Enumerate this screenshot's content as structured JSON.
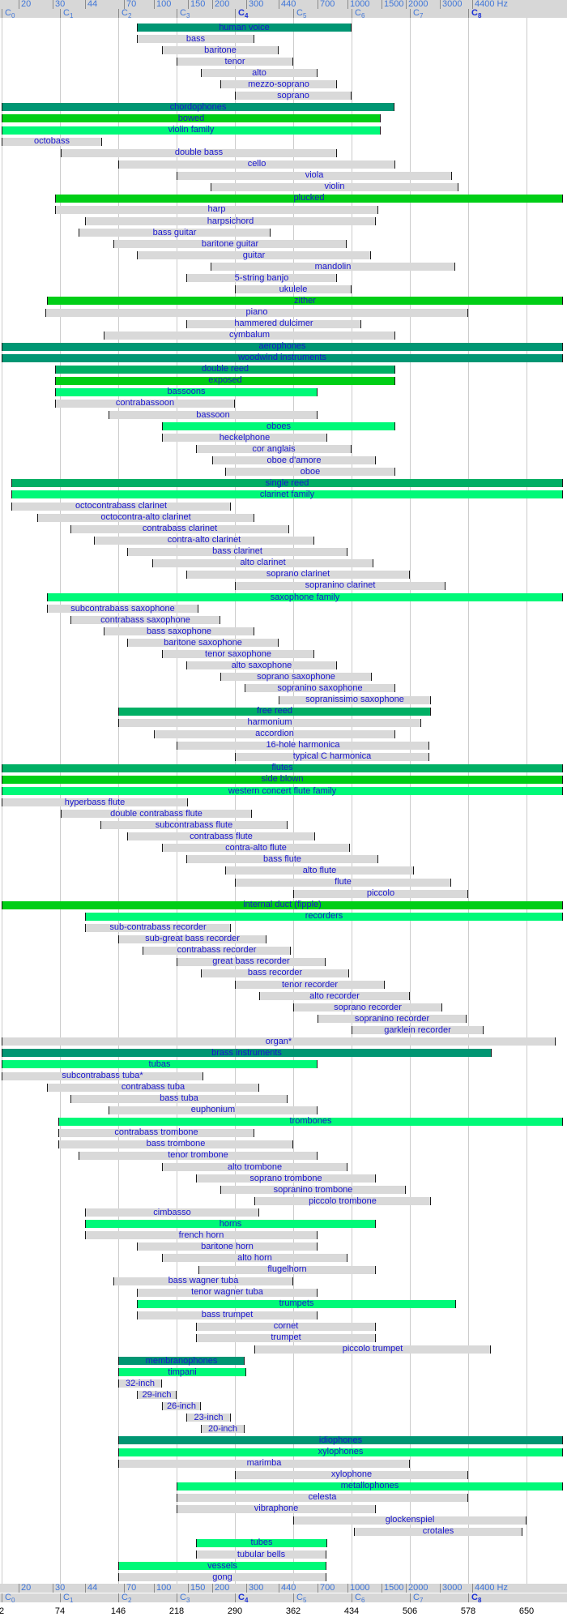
{
  "axis": {
    "top_frequency_row": {
      "values": [
        20,
        30,
        44,
        70,
        100,
        150,
        200,
        300,
        440,
        700,
        1000,
        1500,
        2000,
        3000,
        4400
      ],
      "unit": "Hz"
    },
    "octave_labels": [
      "C0",
      "C1",
      "C2",
      "C3",
      "C4",
      "C5",
      "C6",
      "C7",
      "C8"
    ],
    "bold_octave_labels": [
      "C4",
      "C8"
    ],
    "bottom_frequency_row": {
      "values": [
        20,
        30,
        44,
        70,
        100,
        150,
        200,
        300,
        440,
        700,
        1000,
        1500,
        2000,
        3000,
        4400
      ],
      "unit": "Hz"
    },
    "pixel_ruler_values": [
      2,
      74,
      146,
      218,
      290,
      362,
      434,
      506,
      578,
      650
    ]
  },
  "colors": {
    "branch": "#009673",
    "sub_branch": "#00af64",
    "method": "#00ce16",
    "family": "#00f978",
    "instrument": "#d9d9d9",
    "bar_label_text": "#1a16cf",
    "axis_text": "#4076d8",
    "axis_text_strong": "#1b2fd6",
    "grid_line": "#cccccc",
    "end_tick": "#1a1a1a",
    "scale_background": "#d7d7d7",
    "ruler_text": "#000000"
  },
  "chart_data": {
    "type": "bar",
    "subtype": "horizontal-range-bars",
    "title": "",
    "xlabel": "frequency (Hz), logarithmic scale",
    "ylabel": "",
    "x_scale": "log2",
    "x_range_hz": [
      16.35,
      13000
    ],
    "grid": true,
    "legend_levels": [
      "branch",
      "sub_branch",
      "method",
      "family",
      "instrument"
    ],
    "bars": [
      {
        "label": "human voice",
        "level": "branch",
        "low_hz": 82,
        "high_hz": 1047
      },
      {
        "label": "bass",
        "level": "instrument",
        "low_hz": 82,
        "high_hz": 330
      },
      {
        "label": "baritone",
        "level": "instrument",
        "low_hz": 110,
        "high_hz": 440
      },
      {
        "label": "tenor",
        "level": "instrument",
        "low_hz": 131,
        "high_hz": 523
      },
      {
        "label": "alto",
        "level": "instrument",
        "low_hz": 175,
        "high_hz": 698
      },
      {
        "label": "mezzo-soprano",
        "level": "instrument",
        "low_hz": 220,
        "high_hz": 880
      },
      {
        "label": "soprano",
        "level": "instrument",
        "low_hz": 262,
        "high_hz": 1047
      },
      {
        "label": "chordophones",
        "level": "branch",
        "low_hz": 16.35,
        "high_hz": 1740
      },
      {
        "label": "bowed",
        "level": "method",
        "low_hz": 16.35,
        "high_hz": 1480
      },
      {
        "label": "violin family",
        "level": "family",
        "low_hz": 16.35,
        "high_hz": 1480
      },
      {
        "label": "octobass",
        "level": "instrument",
        "low_hz": 16.35,
        "high_hz": 54
      },
      {
        "label": "double bass",
        "level": "instrument",
        "low_hz": 33,
        "high_hz": 880
      },
      {
        "label": "cello",
        "level": "instrument",
        "low_hz": 65.4,
        "high_hz": 1760
      },
      {
        "label": "viola",
        "level": "instrument",
        "low_hz": 131,
        "high_hz": 3460
      },
      {
        "label": "violin",
        "level": "instrument",
        "low_hz": 196,
        "high_hz": 3730
      },
      {
        "label": "plucked",
        "level": "method",
        "low_hz": 31,
        "high_hz": 12900
      },
      {
        "label": "harp",
        "level": "instrument",
        "low_hz": 31,
        "high_hz": 1440
      },
      {
        "label": "harpsichord",
        "level": "instrument",
        "low_hz": 44,
        "high_hz": 1400
      },
      {
        "label": "bass guitar",
        "level": "instrument",
        "low_hz": 41,
        "high_hz": 400
      },
      {
        "label": "baritone guitar",
        "level": "instrument",
        "low_hz": 62,
        "high_hz": 988
      },
      {
        "label": "guitar",
        "level": "instrument",
        "low_hz": 82,
        "high_hz": 1319
      },
      {
        "label": "mandolin",
        "level": "instrument",
        "low_hz": 196,
        "high_hz": 3590
      },
      {
        "label": "5-string banjo",
        "level": "instrument",
        "low_hz": 147,
        "high_hz": 880
      },
      {
        "label": "ukulele",
        "level": "instrument",
        "low_hz": 262,
        "high_hz": 1047
      },
      {
        "label": "zither",
        "level": "method",
        "low_hz": 28,
        "high_hz": 12900
      },
      {
        "label": "piano",
        "level": "instrument",
        "low_hz": 27.5,
        "high_hz": 4186
      },
      {
        "label": "hammered dulcimer",
        "level": "instrument",
        "low_hz": 147,
        "high_hz": 1175
      },
      {
        "label": "cymbalum",
        "level": "instrument",
        "low_hz": 55,
        "high_hz": 1760
      },
      {
        "label": "aerophones",
        "level": "branch",
        "low_hz": 16.35,
        "high_hz": 12900
      },
      {
        "label": "woodwind instruments",
        "level": "branch",
        "low_hz": 16.35,
        "high_hz": 12900
      },
      {
        "label": "double reed",
        "level": "sub_branch",
        "low_hz": 31,
        "high_hz": 1760
      },
      {
        "label": "exposed",
        "level": "method",
        "low_hz": 31,
        "high_hz": 1760
      },
      {
        "label": "bassoons",
        "level": "family",
        "low_hz": 31,
        "high_hz": 698
      },
      {
        "label": "contrabassoon",
        "level": "instrument",
        "low_hz": 31,
        "high_hz": 262
      },
      {
        "label": "bassoon",
        "level": "instrument",
        "low_hz": 58,
        "high_hz": 698
      },
      {
        "label": "oboes",
        "level": "family",
        "low_hz": 110,
        "high_hz": 1760
      },
      {
        "label": "heckelphone",
        "level": "instrument",
        "low_hz": 110,
        "high_hz": 784
      },
      {
        "label": "cor anglais",
        "level": "instrument",
        "low_hz": 165,
        "high_hz": 1047
      },
      {
        "label": "oboe d'amore",
        "level": "instrument",
        "low_hz": 200,
        "high_hz": 1397
      },
      {
        "label": "oboe",
        "level": "instrument",
        "low_hz": 233,
        "high_hz": 1760
      },
      {
        "label": "single reed",
        "level": "sub_branch",
        "low_hz": 18.4,
        "high_hz": 12900
      },
      {
        "label": "clarinet family",
        "level": "family",
        "low_hz": 18.4,
        "high_hz": 12900
      },
      {
        "label": "octocontrabass clarinet",
        "level": "instrument",
        "low_hz": 18.4,
        "high_hz": 250
      },
      {
        "label": "octocontra-alto clarinet",
        "level": "instrument",
        "low_hz": 25,
        "high_hz": 330
      },
      {
        "label": "contrabass clarinet",
        "level": "instrument",
        "low_hz": 37,
        "high_hz": 500
      },
      {
        "label": "contra-alto clarinet",
        "level": "instrument",
        "low_hz": 49,
        "high_hz": 670
      },
      {
        "label": "bass clarinet",
        "level": "instrument",
        "low_hz": 73,
        "high_hz": 1000
      },
      {
        "label": "alto clarinet",
        "level": "instrument",
        "low_hz": 98,
        "high_hz": 1360
      },
      {
        "label": "soprano clarinet",
        "level": "instrument",
        "low_hz": 147,
        "high_hz": 2093
      },
      {
        "label": "sopranino clarinet",
        "level": "instrument",
        "low_hz": 262,
        "high_hz": 3200
      },
      {
        "label": "saxophone family",
        "level": "family",
        "low_hz": 28,
        "high_hz": 12900
      },
      {
        "label": "subcontrabass saxophone",
        "level": "instrument",
        "low_hz": 28,
        "high_hz": 170
      },
      {
        "label": "contrabass saxophone",
        "level": "instrument",
        "low_hz": 37,
        "high_hz": 220
      },
      {
        "label": "bass saxophone",
        "level": "instrument",
        "low_hz": 55,
        "high_hz": 330
      },
      {
        "label": "baritone saxophone",
        "level": "instrument",
        "low_hz": 73,
        "high_hz": 440
      },
      {
        "label": "tenor saxophone",
        "level": "instrument",
        "low_hz": 110,
        "high_hz": 670
      },
      {
        "label": "alto saxophone",
        "level": "instrument",
        "low_hz": 147,
        "high_hz": 880
      },
      {
        "label": "soprano saxophone",
        "level": "instrument",
        "low_hz": 220,
        "high_hz": 1330
      },
      {
        "label": "sopranino saxophone",
        "level": "instrument",
        "low_hz": 293,
        "high_hz": 1760
      },
      {
        "label": "sopranissimo saxophone",
        "level": "instrument",
        "low_hz": 440,
        "high_hz": 2690
      },
      {
        "label": "free reed",
        "level": "sub_branch",
        "low_hz": 65.4,
        "high_hz": 2690
      },
      {
        "label": "harmonium",
        "level": "instrument",
        "low_hz": 65.4,
        "high_hz": 2400
      },
      {
        "label": "accordion",
        "level": "instrument",
        "low_hz": 100,
        "high_hz": 1760
      },
      {
        "label": "16-hole harmonica",
        "level": "instrument",
        "low_hz": 131,
        "high_hz": 2637
      },
      {
        "label": "typical C harmonica",
        "level": "instrument",
        "low_hz": 262,
        "high_hz": 2637
      },
      {
        "label": "flutes",
        "level": "sub_branch",
        "low_hz": 16.35,
        "high_hz": 12900
      },
      {
        "label": "side blown",
        "level": "method",
        "low_hz": 16.35,
        "high_hz": 12900
      },
      {
        "label": "western concert flute family",
        "level": "family",
        "low_hz": 16.35,
        "high_hz": 12900
      },
      {
        "label": "hyperbass flute",
        "level": "instrument",
        "low_hz": 16.35,
        "high_hz": 150
      },
      {
        "label": "double contrabass flute",
        "level": "instrument",
        "low_hz": 33,
        "high_hz": 320
      },
      {
        "label": "subcontrabass flute",
        "level": "instrument",
        "low_hz": 53,
        "high_hz": 490
      },
      {
        "label": "contrabass flute",
        "level": "instrument",
        "low_hz": 73,
        "high_hz": 680
      },
      {
        "label": "contra-alto flute",
        "level": "instrument",
        "low_hz": 110,
        "high_hz": 1030
      },
      {
        "label": "bass flute",
        "level": "instrument",
        "low_hz": 147,
        "high_hz": 1440
      },
      {
        "label": "alto flute",
        "level": "instrument",
        "low_hz": 233,
        "high_hz": 2200
      },
      {
        "label": "flute",
        "level": "instrument",
        "low_hz": 262,
        "high_hz": 3420
      },
      {
        "label": "piccolo",
        "level": "instrument",
        "low_hz": 523,
        "high_hz": 4186
      },
      {
        "label": "internal duct (fipple)",
        "level": "method",
        "low_hz": 16.35,
        "high_hz": 12900
      },
      {
        "label": "recorders",
        "level": "family",
        "low_hz": 44,
        "high_hz": 12900
      },
      {
        "label": "sub-contrabass recorder",
        "level": "instrument",
        "low_hz": 44,
        "high_hz": 250
      },
      {
        "label": "sub-great bass recorder",
        "level": "instrument",
        "low_hz": 65.4,
        "high_hz": 380
      },
      {
        "label": "contrabass recorder",
        "level": "instrument",
        "low_hz": 87,
        "high_hz": 510
      },
      {
        "label": "great bass recorder",
        "level": "instrument",
        "low_hz": 131,
        "high_hz": 770
      },
      {
        "label": "bass recorder",
        "level": "instrument",
        "low_hz": 175,
        "high_hz": 1020
      },
      {
        "label": "tenor recorder",
        "level": "instrument",
        "low_hz": 262,
        "high_hz": 1550
      },
      {
        "label": "alto recorder",
        "level": "instrument",
        "low_hz": 349,
        "high_hz": 2093
      },
      {
        "label": "soprano recorder",
        "level": "instrument",
        "low_hz": 523,
        "high_hz": 3080
      },
      {
        "label": "sopranino recorder",
        "level": "instrument",
        "low_hz": 698,
        "high_hz": 4100
      },
      {
        "label": "garklein recorder",
        "level": "instrument",
        "low_hz": 1047,
        "high_hz": 5030
      },
      {
        "label": "organ*",
        "level": "instrument",
        "low_hz": 16.35,
        "high_hz": 11800
      },
      {
        "label": "brass instruments",
        "level": "branch",
        "low_hz": 16.35,
        "high_hz": 5530
      },
      {
        "label": "tubas",
        "level": "family",
        "low_hz": 16.35,
        "high_hz": 698
      },
      {
        "label": "subcontrabass tuba*",
        "level": "instrument",
        "low_hz": 16.35,
        "high_hz": 180
      },
      {
        "label": "contrabass tuba",
        "level": "instrument",
        "low_hz": 28,
        "high_hz": 349
      },
      {
        "label": "bass tuba",
        "level": "instrument",
        "low_hz": 37,
        "high_hz": 490
      },
      {
        "label": "euphonium",
        "level": "instrument",
        "low_hz": 58,
        "high_hz": 698
      },
      {
        "label": "trombones",
        "level": "family",
        "low_hz": 32,
        "high_hz": 12900
      },
      {
        "label": "contrabass trombone",
        "level": "instrument",
        "low_hz": 32,
        "high_hz": 330
      },
      {
        "label": "bass trombone",
        "level": "instrument",
        "low_hz": 32,
        "high_hz": 523
      },
      {
        "label": "tenor trombone",
        "level": "instrument",
        "low_hz": 41,
        "high_hz": 698
      },
      {
        "label": "alto trombone",
        "level": "instrument",
        "low_hz": 110,
        "high_hz": 1000
      },
      {
        "label": "soprano trombone",
        "level": "instrument",
        "low_hz": 165,
        "high_hz": 1400
      },
      {
        "label": "sopranino trombone",
        "level": "instrument",
        "low_hz": 220,
        "high_hz": 2000
      },
      {
        "label": "piccolo trombone",
        "level": "instrument",
        "low_hz": 330,
        "high_hz": 2690
      },
      {
        "label": "cimbasso",
        "level": "instrument",
        "low_hz": 44,
        "high_hz": 349
      },
      {
        "label": "horns",
        "level": "family",
        "low_hz": 44,
        "high_hz": 1400
      },
      {
        "label": "french horn",
        "level": "instrument",
        "low_hz": 44,
        "high_hz": 698
      },
      {
        "label": "baritone horn",
        "level": "instrument",
        "low_hz": 82,
        "high_hz": 698
      },
      {
        "label": "alto horn",
        "level": "instrument",
        "low_hz": 110,
        "high_hz": 1000
      },
      {
        "label": "flugelhorn",
        "level": "instrument",
        "low_hz": 170,
        "high_hz": 1400
      },
      {
        "label": "bass wagner tuba",
        "level": "instrument",
        "low_hz": 62,
        "high_hz": 523
      },
      {
        "label": "tenor wagner tuba",
        "level": "instrument",
        "low_hz": 82,
        "high_hz": 698
      },
      {
        "label": "trumpets",
        "level": "family",
        "low_hz": 82,
        "high_hz": 3620
      },
      {
        "label": "bass trumpet",
        "level": "instrument",
        "low_hz": 82,
        "high_hz": 698
      },
      {
        "label": "cornet",
        "level": "instrument",
        "low_hz": 165,
        "high_hz": 1400
      },
      {
        "label": "trumpet",
        "level": "instrument",
        "low_hz": 165,
        "high_hz": 1400
      },
      {
        "label": "piccolo trumpet",
        "level": "instrument",
        "low_hz": 330,
        "high_hz": 5480
      },
      {
        "label": "membranophones",
        "level": "branch",
        "low_hz": 65.4,
        "high_hz": 295
      },
      {
        "label": "timpani",
        "level": "family",
        "low_hz": 65.4,
        "high_hz": 300
      },
      {
        "label": "32-inch",
        "level": "instrument",
        "low_hz": 65.4,
        "high_hz": 110
      },
      {
        "label": "29-inch",
        "level": "instrument",
        "low_hz": 82,
        "high_hz": 131
      },
      {
        "label": "26-inch",
        "level": "instrument",
        "low_hz": 110,
        "high_hz": 175
      },
      {
        "label": "23-inch",
        "level": "instrument",
        "low_hz": 147,
        "high_hz": 250
      },
      {
        "label": "20-inch",
        "level": "instrument",
        "low_hz": 175,
        "high_hz": 295
      },
      {
        "label": "idiophones",
        "level": "branch",
        "low_hz": 65.4,
        "high_hz": 12900
      },
      {
        "label": "xylophones",
        "level": "family",
        "low_hz": 65.4,
        "high_hz": 12900
      },
      {
        "label": "marimba",
        "level": "instrument",
        "low_hz": 65.4,
        "high_hz": 2093
      },
      {
        "label": "xylophone",
        "level": "instrument",
        "low_hz": 262,
        "high_hz": 4186
      },
      {
        "label": "metallophones",
        "level": "family",
        "low_hz": 131,
        "high_hz": 12900
      },
      {
        "label": "celesta",
        "level": "instrument",
        "low_hz": 131,
        "high_hz": 4186
      },
      {
        "label": "vibraphone",
        "level": "instrument",
        "low_hz": 131,
        "high_hz": 1400
      },
      {
        "label": "glockenspiel",
        "level": "instrument",
        "low_hz": 523,
        "high_hz": 8372
      },
      {
        "label": "crotales",
        "level": "instrument",
        "low_hz": 1080,
        "high_hz": 8000
      },
      {
        "label": "tubes",
        "level": "family",
        "low_hz": 165,
        "high_hz": 784
      },
      {
        "label": "tubular bells",
        "level": "instrument",
        "low_hz": 165,
        "high_hz": 780
      },
      {
        "label": "vessels",
        "level": "family",
        "low_hz": 65.4,
        "high_hz": 780
      },
      {
        "label": "gong",
        "level": "instrument",
        "low_hz": 65.4,
        "high_hz": 780
      }
    ]
  }
}
